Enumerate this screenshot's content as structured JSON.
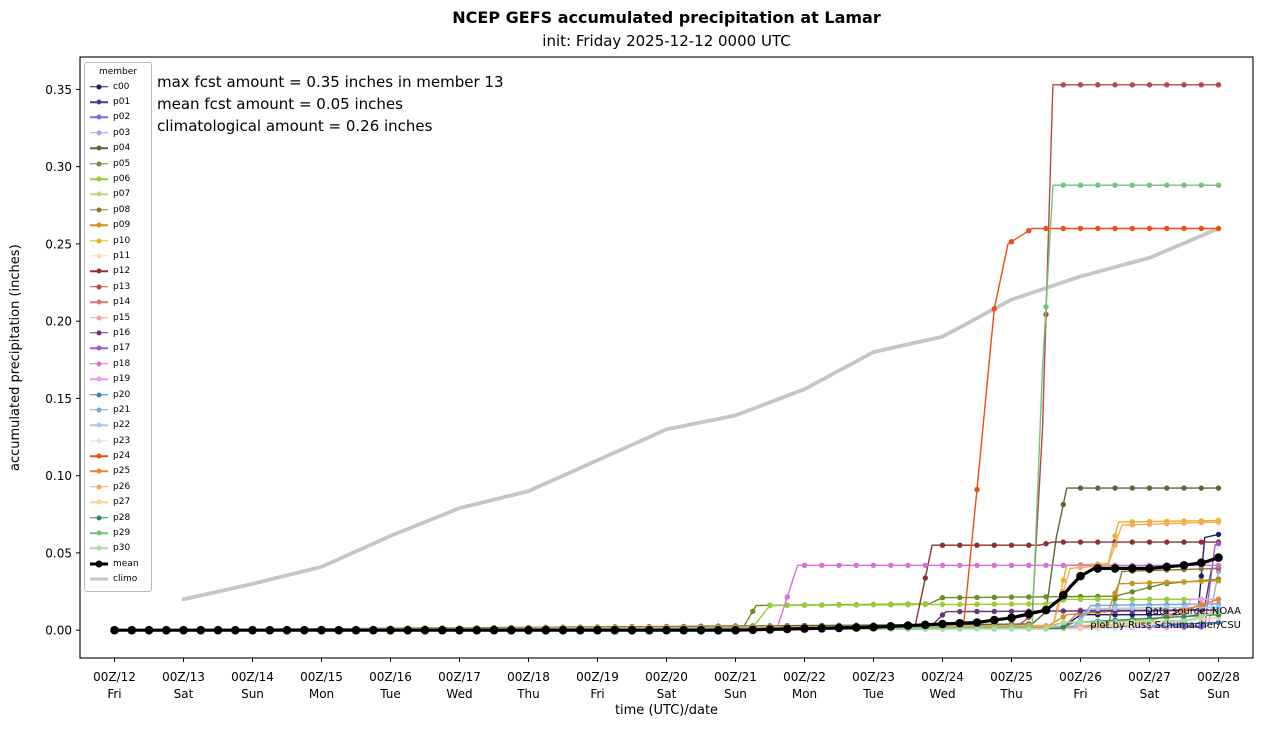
{
  "chart_data": {
    "type": "line",
    "title": "NCEP GEFS accumulated precipitation at Lamar",
    "subtitle": "init: Friday 2025-12-12 0000 UTC",
    "xlabel": "time (UTC)/date",
    "ylabel": "accumulated precipitation (inches)",
    "legend_title": "member",
    "legend_position": "upper-left",
    "grid": false,
    "xlim": [
      -0.5,
      16.5
    ],
    "ylim": [
      -0.018,
      0.371
    ],
    "yticks": [
      0.0,
      0.05,
      0.1,
      0.15,
      0.2,
      0.25,
      0.3,
      0.35
    ],
    "xticks": [
      {
        "label": "00Z/12",
        "day": "Fri"
      },
      {
        "label": "00Z/13",
        "day": "Sat"
      },
      {
        "label": "00Z/14",
        "day": "Sun"
      },
      {
        "label": "00Z/15",
        "day": "Mon"
      },
      {
        "label": "00Z/16",
        "day": "Tue"
      },
      {
        "label": "00Z/17",
        "day": "Wed"
      },
      {
        "label": "00Z/18",
        "day": "Thu"
      },
      {
        "label": "00Z/19",
        "day": "Fri"
      },
      {
        "label": "00Z/20",
        "day": "Sat"
      },
      {
        "label": "00Z/21",
        "day": "Sun"
      },
      {
        "label": "00Z/22",
        "day": "Mon"
      },
      {
        "label": "00Z/23",
        "day": "Tue"
      },
      {
        "label": "00Z/24",
        "day": "Wed"
      },
      {
        "label": "00Z/25",
        "day": "Thu"
      },
      {
        "label": "00Z/26",
        "day": "Fri"
      },
      {
        "label": "00Z/27",
        "day": "Sat"
      },
      {
        "label": "00Z/28",
        "day": "Sun"
      }
    ],
    "annotations": [
      "max fcst amount = 0.35 inches in member 13",
      "mean fcst amount = 0.05 inches",
      "climatological amount = 0.26 inches"
    ],
    "source_note": [
      "Data source: NOAA",
      "plot by Russ Schumacher/CSU"
    ],
    "marker_interval_days": 0.25,
    "series": [
      {
        "label": "c00",
        "color": "#1a1a70",
        "points": [
          [
            0,
            0
          ],
          [
            13.75,
            0.002
          ],
          [
            14,
            0.01
          ],
          [
            15.7,
            0.01
          ],
          [
            15.8,
            0.06
          ],
          [
            16,
            0.062
          ]
        ]
      },
      {
        "label": "p01",
        "color": "#483d8b",
        "points": [
          [
            0,
            0
          ],
          [
            14,
            0.002
          ],
          [
            15.75,
            0.003
          ],
          [
            15.9,
            0.04
          ],
          [
            16,
            0.04
          ]
        ]
      },
      {
        "label": "p02",
        "color": "#7b68ee",
        "points": [
          [
            0,
            0
          ],
          [
            13.9,
            0.001
          ],
          [
            14.1,
            0.012
          ],
          [
            16,
            0.013
          ]
        ]
      },
      {
        "label": "p03",
        "color": "#a5a5e8",
        "points": [
          [
            0,
            0
          ],
          [
            15,
            0.002
          ],
          [
            15.85,
            0.003
          ],
          [
            16,
            0.038
          ]
        ]
      },
      {
        "label": "p04",
        "color": "#556b2f",
        "points": [
          [
            0,
            0
          ],
          [
            13.3,
            0.004
          ],
          [
            13.5,
            0.012
          ],
          [
            13.65,
            0.06
          ],
          [
            13.8,
            0.092
          ],
          [
            16,
            0.092
          ]
        ]
      },
      {
        "label": "p05",
        "color": "#6b8e23",
        "points": [
          [
            0,
            0
          ],
          [
            9.1,
            0.001
          ],
          [
            9.3,
            0.016
          ],
          [
            11.8,
            0.017
          ],
          [
            12,
            0.021
          ],
          [
            14.5,
            0.022
          ],
          [
            15.2,
            0.03
          ],
          [
            16,
            0.033
          ]
        ]
      },
      {
        "label": "p06",
        "color": "#9acd32",
        "points": [
          [
            0,
            0
          ],
          [
            9.25,
            0.002
          ],
          [
            9.5,
            0.016
          ],
          [
            13.5,
            0.017
          ],
          [
            13.8,
            0.02
          ],
          [
            16,
            0.02
          ]
        ]
      },
      {
        "label": "p07",
        "color": "#d0d080",
        "points": [
          [
            0,
            0
          ],
          [
            13.9,
            0.002
          ],
          [
            16,
            0.008
          ]
        ]
      },
      {
        "label": "p08",
        "color": "#8f7635",
        "points": [
          [
            0,
            0
          ],
          [
            14.4,
            0.003
          ],
          [
            14.6,
            0.038
          ],
          [
            16,
            0.04
          ]
        ]
      },
      {
        "label": "p09",
        "color": "#c8941a",
        "points": [
          [
            0,
            0
          ],
          [
            13.5,
            0.002
          ],
          [
            13.8,
            0.01
          ],
          [
            14.4,
            0.012
          ],
          [
            14.55,
            0.03
          ],
          [
            16,
            0.032
          ]
        ]
      },
      {
        "label": "p10",
        "color": "#e6b422",
        "points": [
          [
            0,
            0
          ],
          [
            13.6,
            0.003
          ],
          [
            13.8,
            0.042
          ],
          [
            14.4,
            0.043
          ],
          [
            14.55,
            0.07
          ],
          [
            16,
            0.071
          ]
        ]
      },
      {
        "label": "p11",
        "color": "#f5deb3",
        "points": [
          [
            0,
            0
          ],
          [
            14,
            0.003
          ],
          [
            16,
            0.012
          ]
        ]
      },
      {
        "label": "p12",
        "color": "#8b3333",
        "points": [
          [
            0,
            0
          ],
          [
            11.6,
            0.002
          ],
          [
            11.85,
            0.055
          ],
          [
            13.4,
            0.055
          ],
          [
            13.6,
            0.057
          ],
          [
            16,
            0.057
          ]
        ]
      },
      {
        "label": "p13",
        "color": "#b34a4a",
        "points": [
          [
            0,
            0
          ],
          [
            13.1,
            0.003
          ],
          [
            13.3,
            0.01
          ],
          [
            13.45,
            0.13
          ],
          [
            13.6,
            0.353
          ],
          [
            16,
            0.353
          ]
        ]
      },
      {
        "label": "p14",
        "color": "#d47878",
        "points": [
          [
            0,
            0
          ],
          [
            13.75,
            0.002
          ],
          [
            14,
            0.013
          ],
          [
            16,
            0.013
          ]
        ]
      },
      {
        "label": "p15",
        "color": "#f2a0a0",
        "points": [
          [
            0,
            0
          ],
          [
            14.5,
            0.002
          ],
          [
            15.5,
            0.005
          ],
          [
            16,
            0.013
          ]
        ]
      },
      {
        "label": "p16",
        "color": "#67327e",
        "points": [
          [
            0,
            0
          ],
          [
            11.8,
            0.001
          ],
          [
            12.05,
            0.012
          ],
          [
            16,
            0.013
          ]
        ]
      },
      {
        "label": "p17",
        "color": "#a457c6",
        "points": [
          [
            0,
            0
          ],
          [
            15.8,
            0.002
          ],
          [
            15.95,
            0.055
          ],
          [
            16,
            0.056
          ]
        ]
      },
      {
        "label": "p18",
        "color": "#da70d6",
        "points": [
          [
            0,
            0
          ],
          [
            9.6,
            0.001
          ],
          [
            9.9,
            0.042
          ],
          [
            16,
            0.042
          ]
        ]
      },
      {
        "label": "p19",
        "color": "#ee9aee",
        "points": [
          [
            0,
            0
          ],
          [
            15.4,
            0.002
          ],
          [
            15.6,
            0.02
          ],
          [
            16,
            0.02
          ]
        ]
      },
      {
        "label": "p20",
        "color": "#3b82c4",
        "points": [
          [
            0,
            0
          ],
          [
            14,
            0.001
          ],
          [
            16,
            0.005
          ]
        ]
      },
      {
        "label": "p21",
        "color": "#74a9dc",
        "points": [
          [
            0,
            0
          ],
          [
            13.9,
            0.002
          ],
          [
            14.15,
            0.016
          ],
          [
            16,
            0.017
          ]
        ]
      },
      {
        "label": "p22",
        "color": "#a8cbea",
        "points": [
          [
            0,
            0
          ],
          [
            13.9,
            0.001
          ],
          [
            14.15,
            0.014
          ],
          [
            16,
            0.015
          ]
        ]
      },
      {
        "label": "p23",
        "color": "#d4e5f5",
        "points": [
          [
            0,
            0
          ],
          [
            14.5,
            0.001
          ],
          [
            16,
            0.008
          ]
        ]
      },
      {
        "label": "p24",
        "color": "#ef4e11",
        "points": [
          [
            0,
            0
          ],
          [
            12.3,
            0.001
          ],
          [
            12.5,
            0.091
          ],
          [
            12.75,
            0.208
          ],
          [
            12.95,
            0.25
          ],
          [
            13.3,
            0.26
          ],
          [
            16,
            0.26
          ]
        ]
      },
      {
        "label": "p25",
        "color": "#f58220",
        "points": [
          [
            0,
            0
          ],
          [
            13.5,
            0.002
          ],
          [
            13.75,
            0.005
          ],
          [
            15,
            0.006
          ],
          [
            16,
            0.02
          ]
        ]
      },
      {
        "label": "p26",
        "color": "#f9a85e",
        "points": [
          [
            0,
            0
          ],
          [
            13.6,
            0.003
          ],
          [
            13.85,
            0.04
          ],
          [
            14.4,
            0.042
          ],
          [
            14.6,
            0.068
          ],
          [
            16,
            0.07
          ]
        ]
      },
      {
        "label": "p27",
        "color": "#fccf9e",
        "points": [
          [
            0,
            0
          ],
          [
            14,
            0.001
          ],
          [
            16,
            0.008
          ]
        ]
      },
      {
        "label": "p28",
        "color": "#2e8b57",
        "points": [
          [
            0,
            0
          ],
          [
            13.7,
            0.001
          ],
          [
            13.9,
            0.005
          ],
          [
            16,
            0.01
          ]
        ]
      },
      {
        "label": "p29",
        "color": "#74c476",
        "points": [
          [
            0,
            0
          ],
          [
            13.3,
            0.002
          ],
          [
            13.45,
            0.17
          ],
          [
            13.6,
            0.288
          ],
          [
            16,
            0.288
          ]
        ]
      },
      {
        "label": "p30",
        "color": "#a6dfa0",
        "points": [
          [
            0,
            0
          ],
          [
            13.5,
            0.001
          ],
          [
            13.75,
            0.005
          ],
          [
            15.5,
            0.006
          ],
          [
            16,
            0.012
          ]
        ]
      },
      {
        "label": "mean",
        "kind": "mean",
        "color": "#000000",
        "points": [
          [
            0,
            0
          ],
          [
            9,
            0
          ],
          [
            10,
            0.001
          ],
          [
            11,
            0.002
          ],
          [
            12,
            0.004
          ],
          [
            12.5,
            0.005
          ],
          [
            13,
            0.008
          ],
          [
            13.5,
            0.013
          ],
          [
            13.7,
            0.02
          ],
          [
            13.85,
            0.028
          ],
          [
            14,
            0.035
          ],
          [
            14.2,
            0.04
          ],
          [
            15,
            0.04
          ],
          [
            15.5,
            0.042
          ],
          [
            15.8,
            0.044
          ],
          [
            16,
            0.047
          ]
        ]
      },
      {
        "label": "climo",
        "kind": "climo",
        "color": "#c6c6c6",
        "points": [
          [
            1,
            0.02
          ],
          [
            2,
            0.03
          ],
          [
            3,
            0.041
          ],
          [
            4,
            0.061
          ],
          [
            5,
            0.079
          ],
          [
            6,
            0.09
          ],
          [
            7,
            0.11
          ],
          [
            8,
            0.13
          ],
          [
            9,
            0.139
          ],
          [
            10,
            0.156
          ],
          [
            11,
            0.18
          ],
          [
            12,
            0.19
          ],
          [
            13,
            0.214
          ],
          [
            14,
            0.229
          ],
          [
            15,
            0.241
          ],
          [
            16,
            0.26
          ]
        ]
      }
    ]
  }
}
